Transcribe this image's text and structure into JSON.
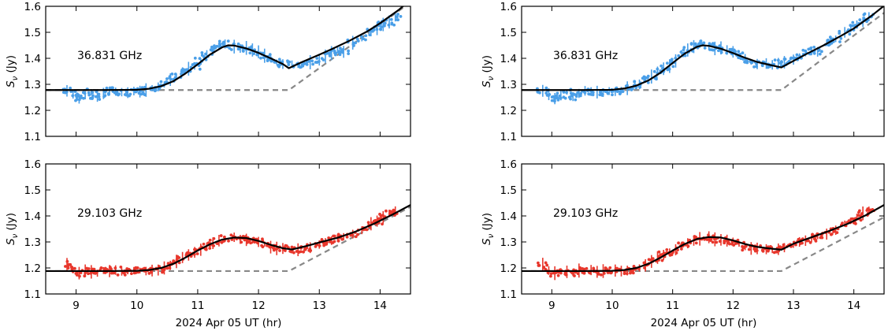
{
  "chart_data": {
    "type": "line",
    "xlabel": "2024 Apr 05   UT (hr)",
    "ylabel_symbol": "S",
    "ylabel_subscript": "ν",
    "ylabel_unit": "(Jy)",
    "xlim": [
      8.5,
      14.5
    ],
    "x_ticks": [
      9,
      10,
      11,
      12,
      13,
      14
    ],
    "y_ticks": [
      1.1,
      1.2,
      1.3,
      1.4,
      1.5,
      1.6
    ],
    "ylim": [
      1.1,
      1.6
    ],
    "grid": false,
    "colors": {
      "blue_data": "#4a9fe8",
      "red_data": "#e8372c",
      "fit": "#000000",
      "baseline": "#888888"
    },
    "panels": [
      {
        "id": "top-left",
        "freq_label": "36.831 GHz",
        "data_color": "blue_data",
        "baseline": {
          "x": [
            8.5,
            12.5,
            14.5
          ],
          "y": [
            1.278,
            1.278,
            1.615
          ]
        },
        "fit": {
          "x": [
            8.5,
            9.0,
            9.5,
            10.0,
            10.2,
            10.4,
            10.6,
            10.8,
            11.0,
            11.2,
            11.4,
            11.5,
            11.6,
            11.8,
            12.0,
            12.2,
            12.4,
            12.5,
            12.7,
            13.0,
            13.2,
            13.5,
            13.8,
            14.0,
            14.3,
            14.4
          ],
          "y": [
            1.278,
            1.278,
            1.278,
            1.279,
            1.283,
            1.293,
            1.312,
            1.342,
            1.377,
            1.414,
            1.442,
            1.45,
            1.449,
            1.438,
            1.421,
            1.4,
            1.378,
            1.362,
            1.384,
            1.414,
            1.435,
            1.468,
            1.505,
            1.535,
            1.585,
            1.605
          ]
        },
        "data": {
          "x": [
            8.85,
            8.95,
            9.05,
            9.15,
            9.25,
            9.35,
            9.45,
            9.55,
            9.65,
            9.75,
            9.85,
            9.95,
            10.05,
            10.15,
            10.25,
            10.35,
            10.45,
            10.55,
            10.65,
            10.75,
            10.85,
            10.95,
            11.05,
            11.15,
            11.25,
            11.35,
            11.45,
            11.6,
            11.7,
            11.8,
            11.9,
            12.0,
            12.1,
            12.2,
            12.3,
            12.4,
            12.55,
            12.65,
            12.75,
            12.85,
            13.0,
            13.1,
            13.2,
            13.3,
            13.4,
            13.55,
            13.7,
            13.85,
            13.95,
            14.05,
            14.15,
            14.25
          ],
          "y": [
            1.275,
            1.262,
            1.245,
            1.258,
            1.27,
            1.252,
            1.265,
            1.275,
            1.272,
            1.27,
            1.268,
            1.274,
            1.272,
            1.278,
            1.285,
            1.29,
            1.3,
            1.318,
            1.33,
            1.35,
            1.36,
            1.37,
            1.39,
            1.418,
            1.432,
            1.445,
            1.455,
            1.445,
            1.438,
            1.44,
            1.432,
            1.425,
            1.41,
            1.398,
            1.385,
            1.378,
            1.38,
            1.375,
            1.382,
            1.385,
            1.395,
            1.408,
            1.42,
            1.432,
            1.425,
            1.46,
            1.475,
            1.5,
            1.515,
            1.53,
            1.54,
            1.56
          ]
        }
      },
      {
        "id": "top-right",
        "freq_label": "36.831 GHz",
        "data_color": "blue_data",
        "baseline": {
          "x": [
            10.2,
            12.8,
            14.5
          ],
          "y": [
            1.278,
            1.278,
            1.575
          ]
        },
        "fit": {
          "x": [
            8.5,
            9.0,
            9.5,
            10.0,
            10.2,
            10.4,
            10.6,
            10.8,
            11.0,
            11.2,
            11.4,
            11.5,
            11.6,
            11.8,
            12.0,
            12.2,
            12.4,
            12.6,
            12.8,
            13.0,
            13.2,
            13.5,
            13.8,
            14.0,
            14.3,
            14.5
          ],
          "y": [
            1.278,
            1.278,
            1.278,
            1.279,
            1.284,
            1.295,
            1.315,
            1.345,
            1.382,
            1.418,
            1.444,
            1.45,
            1.448,
            1.437,
            1.42,
            1.402,
            1.386,
            1.375,
            1.365,
            1.39,
            1.415,
            1.45,
            1.488,
            1.515,
            1.565,
            1.602
          ]
        },
        "data": {
          "x": [
            8.85,
            8.95,
            9.05,
            9.15,
            9.25,
            9.35,
            9.45,
            9.55,
            9.65,
            9.75,
            9.85,
            9.95,
            10.05,
            10.15,
            10.25,
            10.35,
            10.45,
            10.55,
            10.65,
            10.75,
            10.85,
            10.95,
            11.05,
            11.15,
            11.25,
            11.35,
            11.45,
            11.6,
            11.7,
            11.8,
            11.9,
            12.0,
            12.1,
            12.2,
            12.3,
            12.4,
            12.55,
            12.65,
            12.75,
            12.85,
            13.0,
            13.1,
            13.2,
            13.3,
            13.4,
            13.55,
            13.7,
            13.85,
            13.95,
            14.05,
            14.15,
            14.25
          ],
          "y": [
            1.275,
            1.262,
            1.245,
            1.258,
            1.27,
            1.252,
            1.265,
            1.275,
            1.272,
            1.27,
            1.268,
            1.274,
            1.272,
            1.278,
            1.285,
            1.29,
            1.3,
            1.318,
            1.33,
            1.35,
            1.36,
            1.37,
            1.39,
            1.418,
            1.432,
            1.445,
            1.455,
            1.445,
            1.438,
            1.44,
            1.432,
            1.425,
            1.41,
            1.398,
            1.385,
            1.378,
            1.38,
            1.375,
            1.382,
            1.385,
            1.395,
            1.408,
            1.42,
            1.432,
            1.425,
            1.46,
            1.475,
            1.5,
            1.515,
            1.53,
            1.54,
            1.56
          ]
        }
      },
      {
        "id": "bottom-left",
        "freq_label": "29.103 GHz",
        "data_color": "red_data",
        "baseline": {
          "x": [
            8.5,
            12.5,
            14.5
          ],
          "y": [
            1.188,
            1.188,
            1.435
          ]
        },
        "fit": {
          "x": [
            8.5,
            9.0,
            9.5,
            10.0,
            10.2,
            10.4,
            10.6,
            10.8,
            11.0,
            11.2,
            11.4,
            11.6,
            11.8,
            12.0,
            12.2,
            12.4,
            12.55,
            12.8,
            13.0,
            13.3,
            13.6,
            13.9,
            14.2,
            14.5
          ],
          "y": [
            1.188,
            1.188,
            1.188,
            1.189,
            1.192,
            1.2,
            1.216,
            1.24,
            1.267,
            1.291,
            1.309,
            1.317,
            1.315,
            1.304,
            1.289,
            1.276,
            1.271,
            1.285,
            1.298,
            1.316,
            1.34,
            1.37,
            1.405,
            1.442
          ]
        },
        "data": {
          "x": [
            8.85,
            8.95,
            9.05,
            9.15,
            9.25,
            9.35,
            9.45,
            9.55,
            9.65,
            9.75,
            9.85,
            9.95,
            10.05,
            10.15,
            10.25,
            10.35,
            10.45,
            10.55,
            10.65,
            10.75,
            10.85,
            10.95,
            11.05,
            11.15,
            11.25,
            11.35,
            11.45,
            11.6,
            11.7,
            11.8,
            11.9,
            12.0,
            12.1,
            12.2,
            12.3,
            12.4,
            12.55,
            12.65,
            12.75,
            12.85,
            13.0,
            13.1,
            13.2,
            13.3,
            13.4,
            13.55,
            13.7,
            13.85,
            13.95,
            14.05,
            14.15,
            14.25
          ],
          "y": [
            1.215,
            1.19,
            1.18,
            1.19,
            1.185,
            1.18,
            1.19,
            1.188,
            1.192,
            1.185,
            1.188,
            1.19,
            1.19,
            1.188,
            1.19,
            1.192,
            1.2,
            1.21,
            1.225,
            1.24,
            1.25,
            1.26,
            1.27,
            1.285,
            1.295,
            1.305,
            1.312,
            1.318,
            1.31,
            1.308,
            1.305,
            1.3,
            1.292,
            1.28,
            1.275,
            1.275,
            1.272,
            1.27,
            1.272,
            1.278,
            1.29,
            1.3,
            1.305,
            1.315,
            1.32,
            1.33,
            1.345,
            1.37,
            1.38,
            1.395,
            1.41,
            1.42
          ]
        }
      },
      {
        "id": "bottom-right",
        "freq_label": "29.103 GHz",
        "data_color": "red_data",
        "baseline": {
          "x": [
            8.5,
            12.8,
            14.5
          ],
          "y": [
            1.188,
            1.188,
            1.395
          ]
        },
        "fit": {
          "x": [
            8.5,
            9.0,
            9.5,
            10.0,
            10.2,
            10.4,
            10.6,
            10.8,
            11.0,
            11.2,
            11.4,
            11.6,
            11.8,
            12.0,
            12.2,
            12.4,
            12.6,
            12.8,
            13.0,
            13.3,
            13.6,
            13.9,
            14.2,
            14.5
          ],
          "y": [
            1.188,
            1.188,
            1.188,
            1.189,
            1.192,
            1.2,
            1.216,
            1.24,
            1.267,
            1.292,
            1.311,
            1.319,
            1.317,
            1.306,
            1.292,
            1.281,
            1.275,
            1.27,
            1.293,
            1.318,
            1.343,
            1.37,
            1.403,
            1.442
          ]
        },
        "data": {
          "x": [
            8.85,
            8.95,
            9.05,
            9.15,
            9.25,
            9.35,
            9.45,
            9.55,
            9.65,
            9.75,
            9.85,
            9.95,
            10.05,
            10.15,
            10.25,
            10.35,
            10.45,
            10.55,
            10.65,
            10.75,
            10.85,
            10.95,
            11.05,
            11.15,
            11.25,
            11.35,
            11.45,
            11.6,
            11.7,
            11.8,
            11.9,
            12.0,
            12.1,
            12.2,
            12.3,
            12.4,
            12.55,
            12.65,
            12.75,
            12.85,
            13.0,
            13.1,
            13.2,
            13.3,
            13.4,
            13.55,
            13.7,
            13.85,
            13.95,
            14.05,
            14.15,
            14.25
          ],
          "y": [
            1.215,
            1.19,
            1.18,
            1.19,
            1.185,
            1.18,
            1.19,
            1.188,
            1.192,
            1.185,
            1.188,
            1.19,
            1.19,
            1.188,
            1.19,
            1.192,
            1.2,
            1.21,
            1.225,
            1.24,
            1.25,
            1.26,
            1.27,
            1.285,
            1.295,
            1.305,
            1.312,
            1.318,
            1.31,
            1.308,
            1.305,
            1.3,
            1.292,
            1.28,
            1.275,
            1.275,
            1.272,
            1.27,
            1.272,
            1.278,
            1.29,
            1.3,
            1.305,
            1.315,
            1.32,
            1.33,
            1.345,
            1.37,
            1.38,
            1.395,
            1.41,
            1.42
          ]
        }
      }
    ]
  }
}
